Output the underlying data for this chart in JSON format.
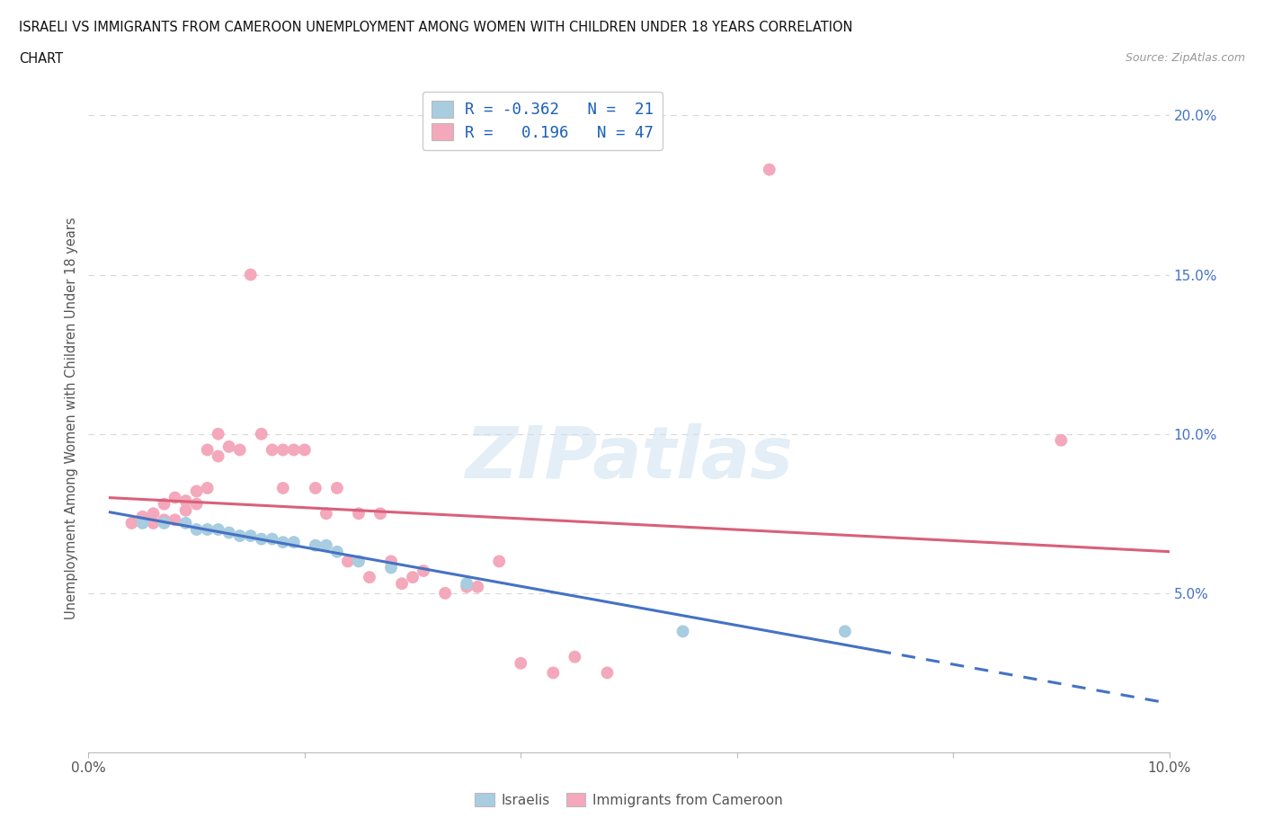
{
  "title_line1": "ISRAELI VS IMMIGRANTS FROM CAMEROON UNEMPLOYMENT AMONG WOMEN WITH CHILDREN UNDER 18 YEARS CORRELATION",
  "title_line2": "CHART",
  "source": "Source: ZipAtlas.com",
  "ylabel": "Unemployment Among Women with Children Under 18 years",
  "xlim": [
    0.0,
    0.1
  ],
  "ylim": [
    0.0,
    0.21
  ],
  "xtick_vals": [
    0.0,
    0.02,
    0.04,
    0.06,
    0.08,
    0.1
  ],
  "ytick_vals": [
    0.0,
    0.05,
    0.1,
    0.15,
    0.2
  ],
  "israeli_color": "#a8cce0",
  "cameroon_color": "#f4a8bc",
  "israeli_line_color": "#4472c4",
  "cameroon_line_color": "#d9607a",
  "background_color": "#ffffff",
  "grid_color": "#d8d8d8",
  "israeli_scatter": [
    [
      0.005,
      0.072
    ],
    [
      0.007,
      0.072
    ],
    [
      0.009,
      0.072
    ],
    [
      0.01,
      0.07
    ],
    [
      0.011,
      0.07
    ],
    [
      0.012,
      0.07
    ],
    [
      0.013,
      0.069
    ],
    [
      0.014,
      0.068
    ],
    [
      0.015,
      0.068
    ],
    [
      0.016,
      0.067
    ],
    [
      0.017,
      0.067
    ],
    [
      0.018,
      0.066
    ],
    [
      0.019,
      0.066
    ],
    [
      0.021,
      0.065
    ],
    [
      0.022,
      0.065
    ],
    [
      0.023,
      0.063
    ],
    [
      0.025,
      0.06
    ],
    [
      0.028,
      0.058
    ],
    [
      0.035,
      0.053
    ],
    [
      0.055,
      0.038
    ],
    [
      0.07,
      0.038
    ]
  ],
  "cameroon_scatter": [
    [
      0.004,
      0.072
    ],
    [
      0.005,
      0.073
    ],
    [
      0.005,
      0.074
    ],
    [
      0.006,
      0.072
    ],
    [
      0.006,
      0.075
    ],
    [
      0.007,
      0.073
    ],
    [
      0.007,
      0.078
    ],
    [
      0.008,
      0.073
    ],
    [
      0.008,
      0.08
    ],
    [
      0.009,
      0.076
    ],
    [
      0.009,
      0.079
    ],
    [
      0.01,
      0.082
    ],
    [
      0.01,
      0.078
    ],
    [
      0.011,
      0.083
    ],
    [
      0.011,
      0.095
    ],
    [
      0.012,
      0.1
    ],
    [
      0.012,
      0.093
    ],
    [
      0.013,
      0.096
    ],
    [
      0.014,
      0.095
    ],
    [
      0.015,
      0.15
    ],
    [
      0.016,
      0.1
    ],
    [
      0.017,
      0.095
    ],
    [
      0.018,
      0.095
    ],
    [
      0.018,
      0.083
    ],
    [
      0.019,
      0.095
    ],
    [
      0.02,
      0.095
    ],
    [
      0.021,
      0.083
    ],
    [
      0.022,
      0.075
    ],
    [
      0.023,
      0.083
    ],
    [
      0.024,
      0.06
    ],
    [
      0.025,
      0.075
    ],
    [
      0.026,
      0.055
    ],
    [
      0.027,
      0.075
    ],
    [
      0.028,
      0.06
    ],
    [
      0.029,
      0.053
    ],
    [
      0.03,
      0.055
    ],
    [
      0.031,
      0.057
    ],
    [
      0.033,
      0.05
    ],
    [
      0.035,
      0.052
    ],
    [
      0.036,
      0.052
    ],
    [
      0.038,
      0.06
    ],
    [
      0.04,
      0.028
    ],
    [
      0.043,
      0.025
    ],
    [
      0.045,
      0.03
    ],
    [
      0.048,
      0.025
    ],
    [
      0.063,
      0.183
    ],
    [
      0.09,
      0.098
    ]
  ]
}
